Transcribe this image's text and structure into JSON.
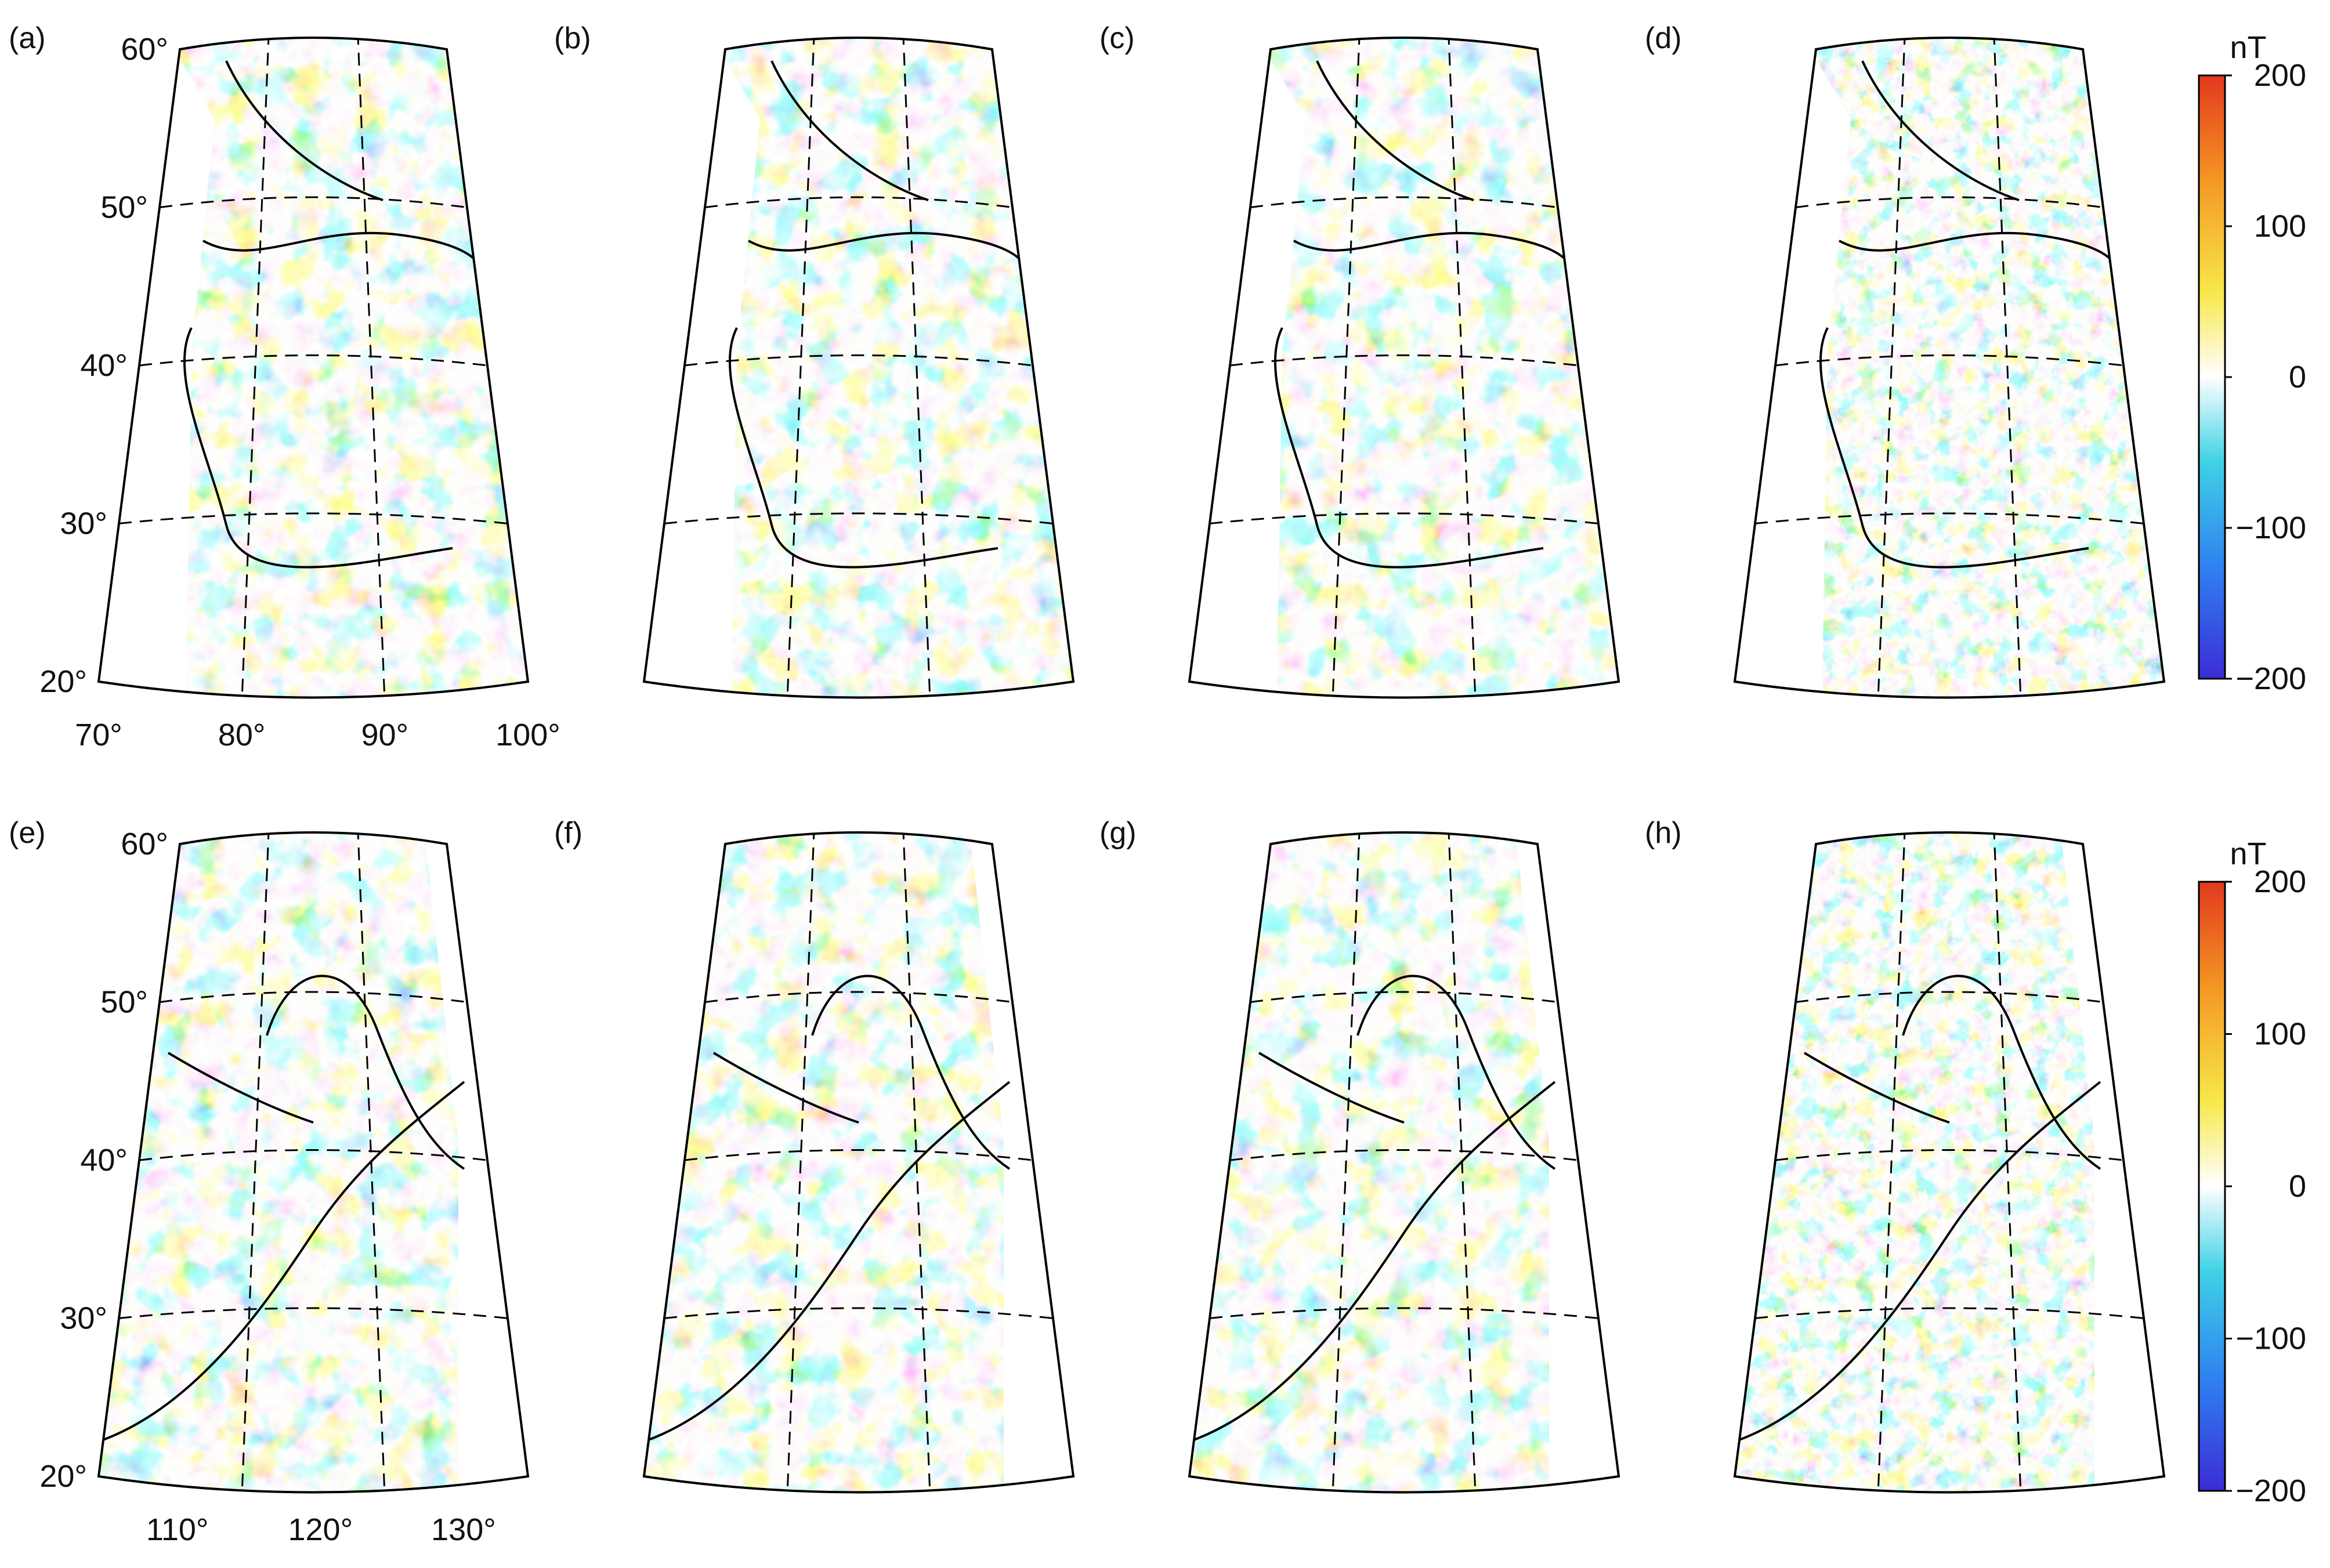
{
  "figure": {
    "panels": [
      {
        "label": "(a)",
        "row": 0
      },
      {
        "label": "(b)",
        "row": 0
      },
      {
        "label": "(c)",
        "row": 0
      },
      {
        "label": "(d)",
        "row": 0
      },
      {
        "label": "(e)",
        "row": 1
      },
      {
        "label": "(f)",
        "row": 1
      },
      {
        "label": "(g)",
        "row": 1
      },
      {
        "label": "(h)",
        "row": 1
      }
    ],
    "rows": [
      {
        "lat_labels": [
          "60°",
          "50°",
          "40°",
          "30°",
          "20°"
        ],
        "lon_labels": [
          "70°",
          "80°",
          "90°",
          "100°"
        ],
        "lon_range": [
          70,
          100
        ],
        "lat_range": [
          20,
          60
        ]
      },
      {
        "lat_labels": [
          "60°",
          "50°",
          "40°",
          "30°",
          "20°"
        ],
        "lon_labels": [
          "110°",
          "120°",
          "130°"
        ],
        "lon_range": [
          105,
          135
        ],
        "lat_range": [
          20,
          60
        ]
      }
    ],
    "colorbar": {
      "unit": "nT",
      "ticks": [
        "200",
        "100",
        "0",
        "−100",
        "−200"
      ],
      "range": [
        -200,
        200
      ],
      "colormap": [
        "#3b2cd6",
        "#2f7ff0",
        "#3fd2e6",
        "#ffffff",
        "#f7e84a",
        "#f59a24",
        "#e2391e"
      ]
    },
    "colors": {
      "frame": "#000000",
      "grid": "#000000",
      "coast": "#000000"
    }
  }
}
